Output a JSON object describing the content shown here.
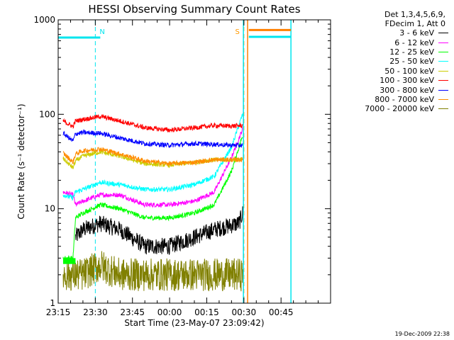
{
  "chart_data": {
    "type": "line",
    "title": "HESSI Observing Summary Count Rates",
    "xlabel": "Start Time (23-May-07 23:09:42)",
    "ylabel": "Count Rate (s⁻¹ detector⁻¹)",
    "x_range_minutes": [
      -15,
      95
    ],
    "x_ticks": [
      {
        "label": "23:15",
        "minute": -15
      },
      {
        "label": "23:30",
        "minute": 0
      },
      {
        "label": "23:45",
        "minute": 15
      },
      {
        "label": "00:00",
        "minute": 30
      },
      {
        "label": "00:15",
        "minute": 45
      },
      {
        "label": "00:30",
        "minute": 60
      },
      {
        "label": "00:45",
        "minute": 75
      }
    ],
    "y_scale": "log",
    "ylim": [
      1,
      1000
    ],
    "y_ticks": [
      {
        "label": "1",
        "value": 1
      },
      {
        "label": "10",
        "value": 10
      },
      {
        "label": "100",
        "value": 100
      },
      {
        "label": "1000",
        "value": 1000
      }
    ],
    "markers": [
      {
        "label": "N",
        "minute": 0,
        "color": "#00e5ee"
      },
      {
        "label": "S",
        "minute": 60,
        "color": "#ff9900"
      }
    ],
    "flag_bars": [
      {
        "from": -15,
        "to": 2,
        "value": 650,
        "color": "#00e5ee"
      },
      {
        "from": 62,
        "to": 79,
        "value": 780,
        "color": "#ff7f00"
      },
      {
        "from": 62,
        "to": 79,
        "value": 660,
        "color": "#00e5ee"
      }
    ],
    "legend_header": [
      "Det 1,3,4,5,6,9,",
      "FDecim 1, Att 0"
    ],
    "series": [
      {
        "name": "3 - 6 keV",
        "color": "#000000",
        "x": [
          -13,
          -9,
          -8,
          -5,
          2,
          10,
          20,
          30,
          40,
          48,
          58,
          59.5
        ],
        "y": [
          null,
          null,
          5,
          6,
          7,
          6,
          4,
          4,
          5,
          6,
          7,
          9
        ]
      },
      {
        "name": "6 - 12 keV",
        "color": "#ff00ff",
        "x": [
          -13,
          -9,
          -8,
          -5,
          2,
          10,
          20,
          30,
          40,
          48,
          55,
          59.5
        ],
        "y": [
          15,
          14,
          11,
          12,
          14,
          14,
          11,
          11,
          12,
          15,
          35,
          70
        ]
      },
      {
        "name": "12 - 25 keV",
        "color": "#00ff00",
        "x": [
          -13,
          -9,
          -8,
          -5,
          2,
          10,
          20,
          30,
          40,
          48,
          55,
          59.5
        ],
        "y": [
          3,
          3,
          8,
          9,
          11,
          10,
          8,
          8,
          9,
          11,
          25,
          60
        ]
      },
      {
        "name": "25 - 50 keV",
        "color": "#00ffff",
        "x": [
          -13,
          -9,
          -8,
          -5,
          2,
          10,
          20,
          30,
          40,
          48,
          55,
          59.5
        ],
        "y": [
          14,
          13,
          15,
          16,
          19,
          18,
          16,
          16,
          18,
          22,
          45,
          100
        ]
      },
      {
        "name": "50 - 100 keV",
        "color": "#cccc00",
        "x": [
          -13,
          -9,
          -8,
          -5,
          2,
          10,
          20,
          30,
          40,
          48,
          55,
          59.5
        ],
        "y": [
          34,
          27,
          32,
          36,
          40,
          36,
          30,
          29,
          31,
          33,
          33,
          33
        ]
      },
      {
        "name": "100 - 300 keV",
        "color": "#ff0000",
        "x": [
          -13,
          -9,
          -8,
          -5,
          2,
          10,
          20,
          30,
          40,
          48,
          55,
          59.5
        ],
        "y": [
          85,
          74,
          85,
          88,
          95,
          85,
          72,
          68,
          72,
          76,
          75,
          76
        ]
      },
      {
        "name": "300 - 800 keV",
        "color": "#0000ff",
        "x": [
          -13,
          -9,
          -8,
          -5,
          2,
          10,
          20,
          30,
          40,
          48,
          55,
          59.5
        ],
        "y": [
          63,
          52,
          62,
          64,
          63,
          56,
          49,
          47,
          49,
          48,
          47,
          47
        ]
      },
      {
        "name": "800 - 7000 keV",
        "color": "#ff8c00",
        "x": [
          -13,
          -9,
          -8,
          -5,
          2,
          10,
          20,
          30,
          40,
          48,
          55,
          59.5
        ],
        "y": [
          39,
          31,
          38,
          41,
          43,
          38,
          32,
          30,
          31,
          33,
          33,
          33
        ]
      },
      {
        "name": "7000 - 20000 keV",
        "color": "#808000",
        "x": [
          -13,
          -9,
          -8,
          -5,
          2,
          10,
          20,
          30,
          40,
          48,
          55,
          59.5
        ],
        "y": [
          2,
          2,
          2,
          2,
          2.5,
          2,
          2,
          2,
          2,
          2,
          2,
          2
        ]
      }
    ],
    "footer_date": "19-Dec-2009 22:38"
  }
}
